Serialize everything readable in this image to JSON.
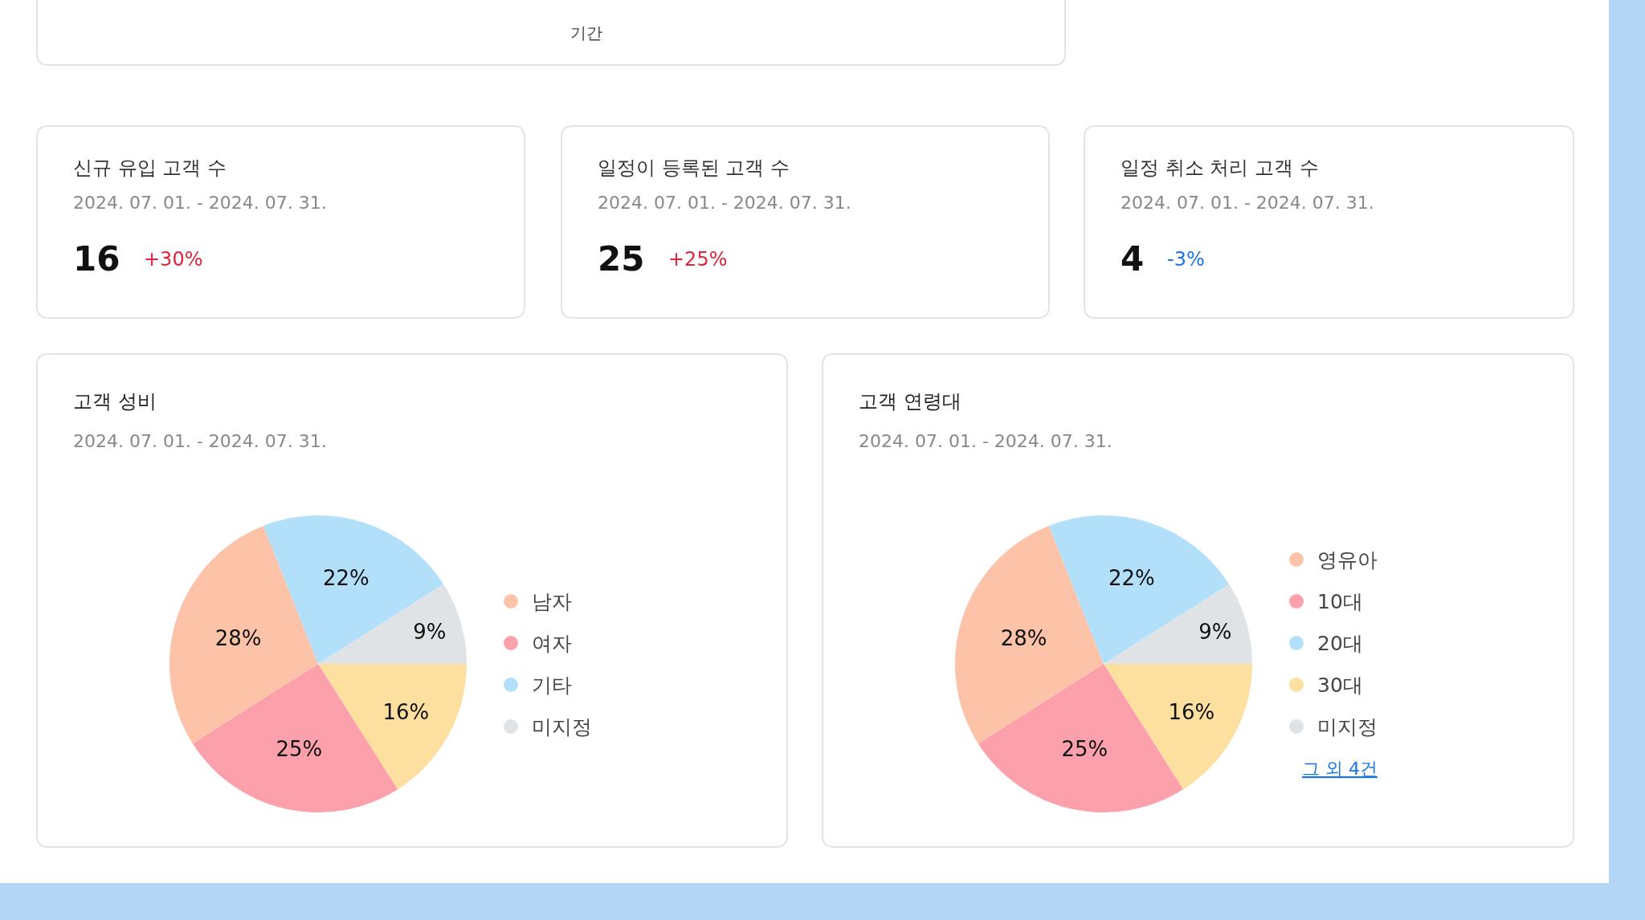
{
  "chart_data": [
    {
      "type": "other",
      "xlabel": "기간"
    },
    {
      "type": "other",
      "title": "신규 유입 고객 수",
      "subtitle": "2024. 07. 01. - 2024. 07. 31.",
      "annotations": [
        "16",
        "+30%"
      ],
      "colors": [
        "#111111",
        "#e0243c"
      ]
    },
    {
      "type": "other",
      "title": "일정이 등록된 고객 수",
      "subtitle": "2024. 07. 01. - 2024. 07. 31.",
      "annotations": [
        "25",
        "+25%"
      ],
      "colors": [
        "#111111",
        "#e0243c"
      ]
    },
    {
      "type": "other",
      "title": "일정 취소 처리 고객 수",
      "subtitle": "2024. 07. 01. - 2024. 07. 31.",
      "annotations": [
        "4",
        "-3%"
      ],
      "colors": [
        "#111111",
        "#1a73e8"
      ]
    },
    {
      "type": "pie",
      "title": "고객 성비",
      "subtitle": "2024. 07. 01. - 2024. 07. 31.",
      "legend": "right",
      "categories": [
        "남자",
        "여자",
        "기타",
        null,
        "미지정"
      ],
      "values": [
        28,
        25,
        22,
        16,
        9
      ],
      "value_labels": [
        "28%",
        "25%",
        "22%",
        "16%",
        "9%"
      ],
      "colors": [
        "#fdc3a8",
        "#fca0ab",
        "#b2e0fb",
        "#fddf9f",
        "#dfe3e6"
      ]
    },
    {
      "type": "pie",
      "title": "고객 연령대",
      "subtitle": "2024. 07. 01. - 2024. 07. 31.",
      "legend": "right",
      "categories": [
        "영유아",
        "10대",
        "20대",
        "30대",
        "미지정"
      ],
      "values": [
        28,
        25,
        22,
        16,
        9
      ],
      "value_labels": [
        "28%",
        "25%",
        "22%",
        "16%",
        "9%"
      ],
      "colors": [
        "#fdc3a8",
        "#fca0ab",
        "#b2e0fb",
        "#fddf9f",
        "#dfe3e6"
      ],
      "annotations": [
        "그 외 4건"
      ]
    }
  ]
}
